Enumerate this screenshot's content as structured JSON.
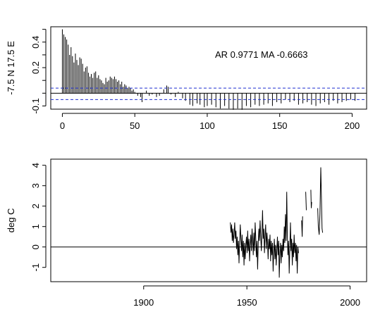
{
  "chart_data": [
    {
      "type": "bar",
      "ylabel": "-7.5 N 17.5 E",
      "annotation": "AR 0.9771  MA -0.6663",
      "xlim": [
        0,
        200
      ],
      "ylim": [
        -0.1,
        0.5
      ],
      "x_ticks": [
        0,
        50,
        100,
        150,
        200
      ],
      "y_ticks": [
        -0.1,
        0.2,
        0.4
      ],
      "y_tick_labels": [
        "-0.1",
        "0.2",
        "0.4"
      ],
      "confidence_bands": [
        0.04,
        -0.05
      ],
      "zero_line": true,
      "lags_sample": [
        [
          0,
          0.5
        ],
        [
          1,
          0.46
        ],
        [
          2,
          0.44
        ],
        [
          3,
          0.42
        ],
        [
          4,
          0.38
        ],
        [
          5,
          0.3
        ],
        [
          6,
          0.36
        ],
        [
          7,
          0.29
        ],
        [
          8,
          0.24
        ],
        [
          9,
          0.31
        ],
        [
          10,
          0.26
        ],
        [
          11,
          0.22
        ],
        [
          12,
          0.28
        ],
        [
          13,
          0.27
        ],
        [
          14,
          0.23
        ],
        [
          15,
          0.17
        ],
        [
          16,
          0.2
        ],
        [
          17,
          0.21
        ],
        [
          18,
          0.16
        ],
        [
          19,
          0.13
        ],
        [
          20,
          0.15
        ],
        [
          21,
          0.12
        ],
        [
          22,
          0.16
        ],
        [
          23,
          0.17
        ],
        [
          24,
          0.12
        ],
        [
          25,
          0.14
        ],
        [
          26,
          0.11
        ],
        [
          27,
          0.1
        ],
        [
          28,
          0.08
        ],
        [
          29,
          0.07
        ],
        [
          30,
          0.12
        ],
        [
          31,
          0.09
        ],
        [
          32,
          0.1
        ],
        [
          33,
          0.13
        ],
        [
          34,
          0.12
        ],
        [
          35,
          0.11
        ],
        [
          36,
          0.13
        ],
        [
          37,
          0.11
        ],
        [
          38,
          0.09
        ],
        [
          39,
          0.1
        ],
        [
          40,
          0.07
        ],
        [
          41,
          0.09
        ],
        [
          42,
          0.05
        ],
        [
          43,
          0.07
        ],
        [
          44,
          0.06
        ],
        [
          45,
          0.04
        ],
        [
          46,
          0.05
        ],
        [
          47,
          0.04
        ],
        [
          48,
          0.02
        ],
        [
          49,
          0.03
        ],
        [
          50,
          0.01
        ],
        [
          52,
          -0.02
        ],
        [
          54,
          -0.03
        ],
        [
          55,
          -0.07
        ],
        [
          58,
          0.02
        ],
        [
          60,
          -0.02
        ],
        [
          62,
          -0.01
        ],
        [
          65,
          -0.03
        ],
        [
          67,
          -0.02
        ],
        [
          70,
          0.03
        ],
        [
          72,
          0.06
        ],
        [
          73,
          0.05
        ],
        [
          75,
          -0.01
        ],
        [
          78,
          -0.03
        ],
        [
          80,
          0.01
        ],
        [
          83,
          -0.04
        ],
        [
          85,
          -0.06
        ],
        [
          88,
          -0.09
        ],
        [
          90,
          -0.1
        ],
        [
          93,
          -0.08
        ],
        [
          95,
          -0.09
        ],
        [
          98,
          -0.11
        ],
        [
          100,
          -0.1
        ],
        [
          103,
          -0.09
        ],
        [
          106,
          -0.11
        ],
        [
          109,
          -0.12
        ],
        [
          112,
          -0.1
        ],
        [
          115,
          -0.12
        ],
        [
          118,
          -0.13
        ],
        [
          121,
          -0.12
        ],
        [
          124,
          -0.13
        ],
        [
          127,
          -0.1
        ],
        [
          130,
          -0.11
        ],
        [
          133,
          -0.09
        ],
        [
          136,
          -0.1
        ],
        [
          139,
          -0.09
        ],
        [
          142,
          -0.08
        ],
        [
          145,
          -0.1
        ],
        [
          148,
          -0.07
        ],
        [
          151,
          -0.08
        ],
        [
          154,
          -0.05
        ],
        [
          157,
          -0.07
        ],
        [
          160,
          -0.06
        ],
        [
          163,
          -0.09
        ],
        [
          166,
          -0.08
        ],
        [
          169,
          -0.07
        ],
        [
          172,
          -0.09
        ],
        [
          175,
          -0.1
        ],
        [
          178,
          -0.08
        ],
        [
          181,
          -0.07
        ],
        [
          184,
          -0.09
        ],
        [
          187,
          -0.06
        ],
        [
          190,
          -0.08
        ],
        [
          193,
          -0.07
        ],
        [
          196,
          -0.06
        ],
        [
          199,
          -0.05
        ],
        [
          202,
          -0.06
        ]
      ]
    },
    {
      "type": "line",
      "ylabel": "deg C",
      "xlim": [
        1855,
        2008
      ],
      "ylim": [
        -1.7,
        4.3
      ],
      "x_ticks": [
        1900,
        1950,
        2000
      ],
      "y_ticks": [
        -1,
        0,
        1,
        2,
        3,
        4
      ],
      "zero_line": true,
      "series": [
        {
          "points": [
            [
              1942.0,
              1.2
            ],
            [
              1942.3,
              0.7
            ],
            [
              1942.6,
              1.1
            ],
            [
              1942.9,
              0.3
            ],
            [
              1943.2,
              0.9
            ],
            [
              1943.5,
              0.2
            ],
            [
              1943.8,
              0.6
            ],
            [
              1944.1,
              1.2
            ],
            [
              1944.4,
              0.4
            ],
            [
              1944.7,
              0.8
            ],
            [
              1945.0,
              -0.1
            ],
            [
              1945.3,
              0.5
            ],
            [
              1945.6,
              -0.4
            ],
            [
              1945.9,
              0.3
            ],
            [
              1946.2,
              -0.8
            ],
            [
              1946.5,
              0.2
            ],
            [
              1946.8,
              1.1
            ],
            [
              1947.1,
              0.4
            ],
            [
              1947.4,
              -0.2
            ],
            [
              1947.7,
              0.6
            ],
            [
              1948.0,
              -0.5
            ],
            [
              1948.3,
              0.3
            ],
            [
              1948.6,
              -0.9
            ],
            [
              1948.9,
              0.2
            ],
            [
              1949.2,
              -0.6
            ],
            [
              1949.5,
              0.1
            ],
            [
              1949.8,
              0.5
            ],
            [
              1950.1,
              -0.3
            ],
            [
              1950.4,
              0.8
            ],
            [
              1950.7,
              -0.2
            ],
            [
              1951.0,
              0.4
            ],
            [
              1951.3,
              -0.7
            ],
            [
              1951.6,
              0.1
            ],
            [
              1951.9,
              0.6
            ],
            [
              1952.2,
              -0.2
            ],
            [
              1952.5,
              0.9
            ],
            [
              1952.8,
              0.3
            ],
            [
              1953.1,
              -0.4
            ],
            [
              1953.4,
              0.7
            ],
            [
              1953.7,
              -0.2
            ],
            [
              1954.0,
              1.2
            ],
            [
              1954.3,
              0.4
            ],
            [
              1954.6,
              -0.5
            ],
            [
              1954.9,
              0.3
            ],
            [
              1955.2,
              -1.1
            ],
            [
              1955.5,
              0.2
            ],
            [
              1955.8,
              0.9
            ],
            [
              1956.1,
              0.3
            ],
            [
              1956.4,
              1.3
            ],
            [
              1956.7,
              0.5
            ],
            [
              1957.0,
              -0.2
            ],
            [
              1957.3,
              0.6
            ],
            [
              1957.6,
              1.8
            ],
            [
              1957.9,
              0.4
            ],
            [
              1958.2,
              0.9
            ],
            [
              1958.5,
              -0.3
            ],
            [
              1958.8,
              0.5
            ],
            [
              1959.1,
              1.1
            ],
            [
              1959.4,
              -0.1
            ],
            [
              1959.7,
              0.7
            ],
            [
              1960.0,
              0.2
            ],
            [
              1960.3,
              -0.6
            ],
            [
              1960.6,
              0.4
            ],
            [
              1960.9,
              -0.1
            ],
            [
              1961.2,
              0.6
            ],
            [
              1961.5,
              -0.7
            ],
            [
              1961.8,
              0.3
            ],
            [
              1962.1,
              -0.4
            ],
            [
              1962.4,
              0.2
            ],
            [
              1962.7,
              -1.2
            ],
            [
              1963.0,
              -0.3
            ],
            [
              1963.3,
              0.4
            ],
            [
              1963.6,
              -0.6
            ],
            [
              1963.9,
              0.1
            ],
            [
              1964.2,
              -0.9
            ],
            [
              1964.5,
              -0.2
            ],
            [
              1964.8,
              0.5
            ],
            [
              1965.1,
              -0.4
            ],
            [
              1965.4,
              0.3
            ],
            [
              1965.7,
              -1.5
            ],
            [
              1966.0,
              -0.3
            ],
            [
              1966.3,
              0.2
            ],
            [
              1966.6,
              -0.8
            ],
            [
              1966.9,
              0.1
            ],
            [
              1967.2,
              -0.5
            ],
            [
              1967.5,
              0.4
            ],
            [
              1967.8,
              -0.2
            ],
            [
              1968.1,
              1.0
            ],
            [
              1968.4,
              0.2
            ],
            [
              1968.7,
              1.6
            ],
            [
              1969.0,
              0.3
            ],
            [
              1969.3,
              2.7
            ],
            [
              1969.6,
              0.5
            ],
            [
              1969.9,
              -0.4
            ],
            [
              1970.2,
              0.3
            ],
            [
              1970.5,
              -1.3
            ],
            [
              1970.8,
              0.0
            ],
            [
              1971.1,
              1.2
            ],
            [
              1971.4,
              -0.2
            ],
            [
              1971.7,
              0.4
            ],
            [
              1972.0,
              -0.9
            ],
            [
              1972.3,
              0.2
            ],
            [
              1972.6,
              -0.5
            ],
            [
              1972.9,
              0.6
            ],
            [
              1973.2,
              -0.3
            ],
            [
              1973.5,
              0.2
            ],
            [
              1973.8,
              -0.7
            ],
            [
              1974.1,
              0.1
            ],
            [
              1974.4,
              -1.3
            ],
            [
              1974.7,
              0.0
            ],
            [
              1975.0,
              -0.3
            ]
          ]
        },
        {
          "points": [
            [
              1976.5,
              1.3
            ],
            [
              1976.8,
              0.5
            ],
            [
              1977.0,
              1.5
            ]
          ]
        },
        {
          "points": [
            [
              1978.5,
              2.7
            ],
            [
              1978.8,
              1.8
            ]
          ]
        },
        {
          "points": [
            [
              1981.0,
              2.8
            ],
            [
              1981.2,
              1.9
            ],
            [
              1981.4,
              2.2
            ]
          ]
        },
        {
          "points": [
            [
              1984.3,
              1.9
            ],
            [
              1984.6,
              1.0
            ],
            [
              1985.0,
              0.6
            ],
            [
              1985.4,
              1.6
            ],
            [
              1985.8,
              3.9
            ],
            [
              1986.1,
              2.4
            ],
            [
              1986.4,
              0.9
            ],
            [
              1986.7,
              0.7
            ]
          ]
        }
      ]
    }
  ]
}
